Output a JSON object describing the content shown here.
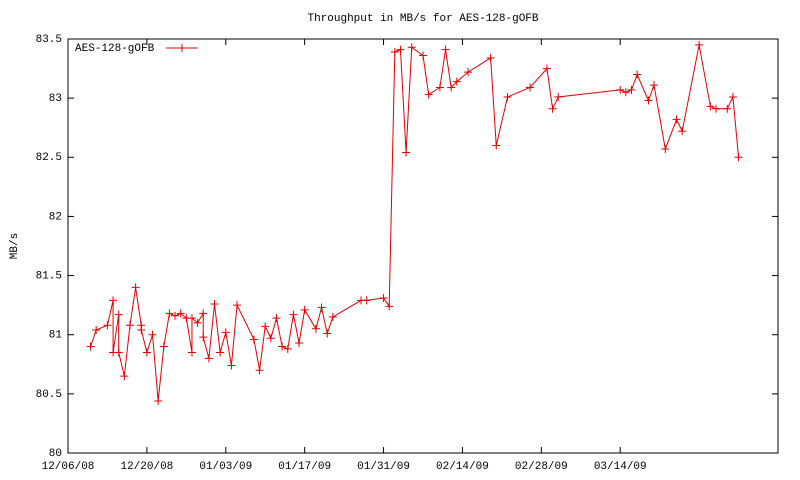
{
  "chart_data": {
    "type": "line",
    "title": "Throughput in MB/s for AES-128-gOFB",
    "y_label": "MB/s",
    "x": [
      "12/10/08",
      "12/11/08",
      "12/13/08",
      "12/14/08",
      "12/14/08",
      "12/15/08",
      "12/15/08",
      "12/16/08",
      "12/17/08",
      "12/18/08",
      "12/19/08",
      "12/19/08",
      "12/20/08",
      "12/21/08",
      "12/22/08",
      "12/23/08",
      "12/24/08",
      "12/25/08",
      "12/26/08",
      "12/27/08",
      "12/28/08",
      "12/28/08",
      "12/29/08",
      "12/30/08",
      "12/30/08",
      "12/31/08",
      "01/01/09",
      "01/02/09",
      "01/03/09",
      "01/04/09",
      "01/05/09",
      "01/08/09",
      "01/09/09",
      "01/10/09",
      "01/11/09",
      "01/12/09",
      "01/13/09",
      "01/14/09",
      "01/15/09",
      "01/16/09",
      "01/17/09",
      "01/19/09",
      "01/20/09",
      "01/21/09",
      "01/22/09",
      "01/27/09",
      "01/28/09",
      "01/31/09",
      "02/01/09",
      "02/02/09",
      "02/03/09",
      "02/04/09",
      "02/05/09",
      "02/07/09",
      "02/08/09",
      "02/10/09",
      "02/11/09",
      "02/12/09",
      "02/13/09",
      "02/15/09",
      "02/19/09",
      "02/20/09",
      "02/22/09",
      "02/26/09",
      "03/01/09",
      "03/02/09",
      "03/03/09",
      "03/14/09",
      "03/15/09",
      "03/16/09",
      "03/17/09",
      "03/19/09",
      "03/20/09",
      "03/22/09",
      "03/24/09",
      "03/25/09",
      "03/28/09",
      "03/30/09",
      "03/31/09",
      "04/02/09",
      "04/03/09",
      "04/04/09"
    ],
    "series": [
      {
        "name": "AES-128-gOFB",
        "color": "#e00000",
        "values": [
          80.9,
          81.04,
          81.08,
          81.29,
          80.85,
          81.17,
          80.85,
          80.65,
          81.08,
          81.4,
          81.08,
          81.04,
          80.85,
          81.0,
          80.44,
          80.9,
          81.18,
          81.16,
          81.18,
          81.14,
          80.85,
          81.14,
          81.1,
          81.18,
          80.98,
          80.8,
          81.26,
          80.85,
          81.02,
          80.74,
          81.25,
          80.96,
          80.7,
          81.07,
          80.97,
          81.14,
          80.9,
          80.88,
          81.17,
          80.93,
          81.21,
          81.05,
          81.23,
          81.01,
          81.15,
          81.29,
          81.29,
          81.31,
          81.24,
          83.39,
          83.41,
          82.54,
          83.43,
          83.36,
          83.03,
          83.09,
          83.41,
          83.09,
          83.14,
          83.22,
          83.34,
          82.6,
          83.01,
          83.09,
          83.25,
          82.91,
          83.01,
          83.07,
          83.05,
          83.07,
          83.2,
          82.98,
          83.11,
          82.57,
          82.82,
          82.72,
          83.45,
          82.93,
          82.91,
          82.91,
          83.01,
          82.5
        ]
      }
    ],
    "xlim": [
      "12/06/08",
      "04/11/09"
    ],
    "xticks": [
      "12/06/08",
      "12/20/08",
      "01/03/09",
      "01/17/09",
      "01/31/09",
      "02/14/09",
      "02/28/09",
      "03/14/09"
    ],
    "ylim": [
      80,
      83.5
    ],
    "yticks": [
      80,
      80.5,
      81,
      81.5,
      82,
      82.5,
      83,
      83.5
    ],
    "legend": "top-left"
  }
}
